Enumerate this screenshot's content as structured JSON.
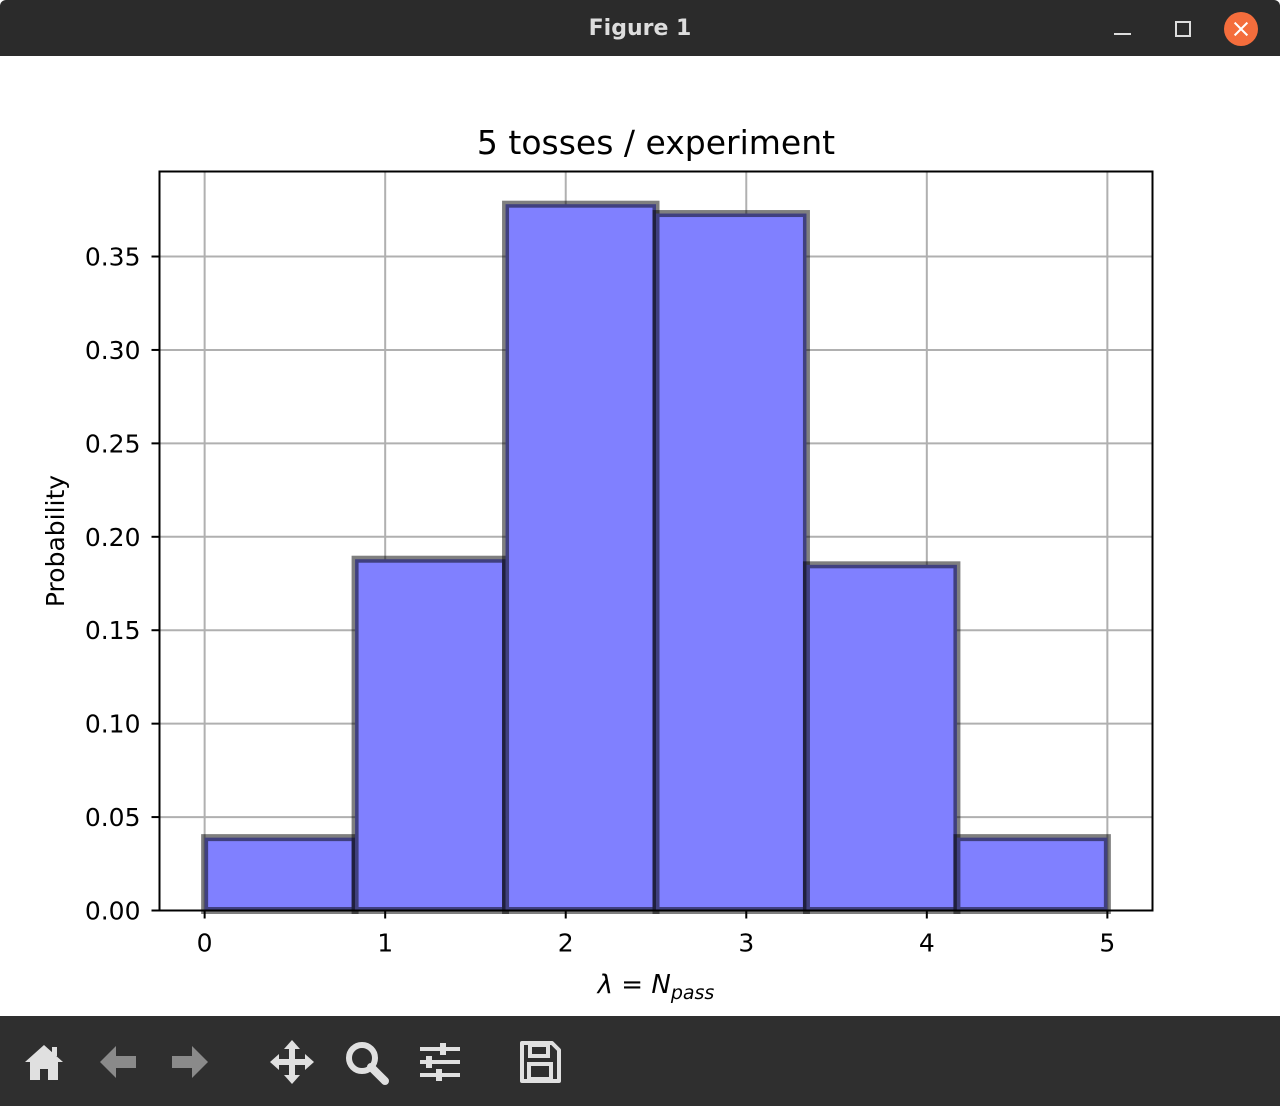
{
  "window": {
    "title": "Figure 1"
  },
  "toolbar": {
    "tools": [
      {
        "icon": "home-icon",
        "enabled": true
      },
      {
        "icon": "back-arrow-icon",
        "enabled": false
      },
      {
        "icon": "forward-arrow-icon",
        "enabled": false
      },
      {
        "icon": "pan-move-icon",
        "enabled": true
      },
      {
        "icon": "zoom-magnifier-icon",
        "enabled": true
      },
      {
        "icon": "configure-subplots-icon",
        "enabled": true
      },
      {
        "icon": "save-floppy-icon",
        "enabled": true
      }
    ]
  },
  "chart_data": {
    "type": "bar",
    "title": "5 tosses / experiment",
    "xlabel": "λ = N",
    "xlabel_subscript": "pass",
    "ylabel": "Probability",
    "bin_edges": [
      0,
      0.8333,
      1.6667,
      2.5,
      3.3333,
      4.1667,
      5.0
    ],
    "values": [
      0.039,
      0.188,
      0.378,
      0.373,
      0.185,
      0.039
    ],
    "xlim": [
      -0.25,
      5.25
    ],
    "ylim": [
      0,
      0.3955
    ],
    "x_ticks": [
      "0",
      "1",
      "2",
      "3",
      "4",
      "5"
    ],
    "y_ticks": [
      "0.00",
      "0.05",
      "0.10",
      "0.15",
      "0.20",
      "0.25",
      "0.30",
      "0.35"
    ],
    "grid": true,
    "colors": {
      "fill": "#8080ff",
      "edge": "#000000",
      "edge_opacity": 0.5,
      "grid": "#b0b0b0"
    }
  }
}
